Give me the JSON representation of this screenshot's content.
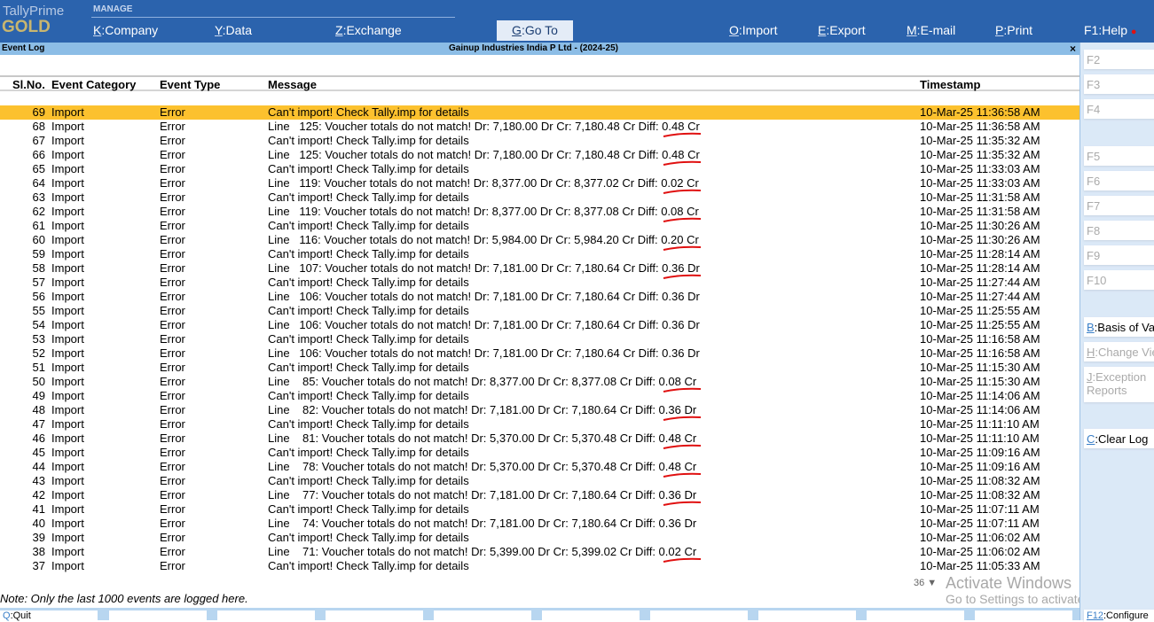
{
  "app": {
    "brand_line1": "TallyPrime",
    "brand_line2": "GOLD",
    "section": "MANAGE"
  },
  "menu": [
    {
      "key": "K",
      "label": "Company"
    },
    {
      "key": "Y",
      "label": "Data"
    },
    {
      "key": "Z",
      "label": "Exchange"
    },
    {
      "key": "G",
      "label": "Go To"
    },
    {
      "key": "O",
      "label": "Import"
    },
    {
      "key": "E",
      "label": "Export"
    },
    {
      "key": "M",
      "label": "E-mail"
    },
    {
      "key": "P",
      "label": "Print"
    },
    {
      "key": "F1",
      "label": "Help"
    }
  ],
  "report": {
    "title": "Event Log",
    "company": "Gainup Industries India P Ltd - (2024-25)",
    "close": "×"
  },
  "columns": [
    "Sl.No.",
    "Event Category",
    "Event Type",
    "Message",
    "Timestamp"
  ],
  "rows": [
    {
      "no": "69",
      "cat": "Import",
      "type": "Error",
      "msg": "Can't import! Check Tally.imp for details",
      "ts": "10-Mar-25 11:36:58 AM",
      "selected": true
    },
    {
      "no": "68",
      "cat": "Import",
      "type": "Error",
      "msg": "Line   125: Voucher totals do not match! Dr: 7,180.00 Dr Cr: 7,180.48 Cr Diff: 0.48 Cr",
      "ts": "10-Mar-25 11:36:58 AM",
      "marked": true
    },
    {
      "no": "67",
      "cat": "Import",
      "type": "Error",
      "msg": "Can't import! Check Tally.imp for details",
      "ts": "10-Mar-25 11:35:32 AM"
    },
    {
      "no": "66",
      "cat": "Import",
      "type": "Error",
      "msg": "Line   125: Voucher totals do not match! Dr: 7,180.00 Dr Cr: 7,180.48 Cr Diff: 0.48 Cr",
      "ts": "10-Mar-25 11:35:32 AM",
      "marked": true
    },
    {
      "no": "65",
      "cat": "Import",
      "type": "Error",
      "msg": "Can't import! Check Tally.imp for details",
      "ts": "10-Mar-25 11:33:03 AM"
    },
    {
      "no": "64",
      "cat": "Import",
      "type": "Error",
      "msg": "Line   119: Voucher totals do not match! Dr: 8,377.00 Dr Cr: 8,377.02 Cr Diff: 0.02 Cr",
      "ts": "10-Mar-25 11:33:03 AM",
      "marked": true
    },
    {
      "no": "63",
      "cat": "Import",
      "type": "Error",
      "msg": "Can't import! Check Tally.imp for details",
      "ts": "10-Mar-25 11:31:58 AM"
    },
    {
      "no": "62",
      "cat": "Import",
      "type": "Error",
      "msg": "Line   119: Voucher totals do not match! Dr: 8,377.00 Dr Cr: 8,377.08 Cr Diff: 0.08 Cr",
      "ts": "10-Mar-25 11:31:58 AM",
      "marked": true
    },
    {
      "no": "61",
      "cat": "Import",
      "type": "Error",
      "msg": "Can't import! Check Tally.imp for details",
      "ts": "10-Mar-25 11:30:26 AM"
    },
    {
      "no": "60",
      "cat": "Import",
      "type": "Error",
      "msg": "Line   116: Voucher totals do not match! Dr: 5,984.00 Dr Cr: 5,984.20 Cr Diff: 0.20 Cr",
      "ts": "10-Mar-25 11:30:26 AM",
      "marked": true
    },
    {
      "no": "59",
      "cat": "Import",
      "type": "Error",
      "msg": "Can't import! Check Tally.imp for details",
      "ts": "10-Mar-25 11:28:14 AM"
    },
    {
      "no": "58",
      "cat": "Import",
      "type": "Error",
      "msg": "Line   107: Voucher totals do not match! Dr: 7,181.00 Dr Cr: 7,180.64 Cr Diff: 0.36 Dr",
      "ts": "10-Mar-25 11:28:14 AM",
      "marked": true
    },
    {
      "no": "57",
      "cat": "Import",
      "type": "Error",
      "msg": "Can't import! Check Tally.imp for details",
      "ts": "10-Mar-25 11:27:44 AM"
    },
    {
      "no": "56",
      "cat": "Import",
      "type": "Error",
      "msg": "Line   106: Voucher totals do not match! Dr: 7,181.00 Dr Cr: 7,180.64 Cr Diff: 0.36 Dr",
      "ts": "10-Mar-25 11:27:44 AM"
    },
    {
      "no": "55",
      "cat": "Import",
      "type": "Error",
      "msg": "Can't import! Check Tally.imp for details",
      "ts": "10-Mar-25 11:25:55 AM"
    },
    {
      "no": "54",
      "cat": "Import",
      "type": "Error",
      "msg": "Line   106: Voucher totals do not match! Dr: 7,181.00 Dr Cr: 7,180.64 Cr Diff: 0.36 Dr",
      "ts": "10-Mar-25 11:25:55 AM"
    },
    {
      "no": "53",
      "cat": "Import",
      "type": "Error",
      "msg": "Can't import! Check Tally.imp for details",
      "ts": "10-Mar-25 11:16:58 AM"
    },
    {
      "no": "52",
      "cat": "Import",
      "type": "Error",
      "msg": "Line   106: Voucher totals do not match! Dr: 7,181.00 Dr Cr: 7,180.64 Cr Diff: 0.36 Dr",
      "ts": "10-Mar-25 11:16:58 AM"
    },
    {
      "no": "51",
      "cat": "Import",
      "type": "Error",
      "msg": "Can't import! Check Tally.imp for details",
      "ts": "10-Mar-25 11:15:30 AM"
    },
    {
      "no": "50",
      "cat": "Import",
      "type": "Error",
      "msg": "Line    85: Voucher totals do not match! Dr: 8,377.00 Dr Cr: 8,377.08 Cr Diff: 0.08 Cr",
      "ts": "10-Mar-25 11:15:30 AM",
      "marked": true
    },
    {
      "no": "49",
      "cat": "Import",
      "type": "Error",
      "msg": "Can't import! Check Tally.imp for details",
      "ts": "10-Mar-25 11:14:06 AM"
    },
    {
      "no": "48",
      "cat": "Import",
      "type": "Error",
      "msg": "Line    82: Voucher totals do not match! Dr: 7,181.00 Dr Cr: 7,180.64 Cr Diff: 0.36 Dr",
      "ts": "10-Mar-25 11:14:06 AM",
      "marked": true
    },
    {
      "no": "47",
      "cat": "Import",
      "type": "Error",
      "msg": "Can't import! Check Tally.imp for details",
      "ts": "10-Mar-25 11:11:10 AM"
    },
    {
      "no": "46",
      "cat": "Import",
      "type": "Error",
      "msg": "Line    81: Voucher totals do not match! Dr: 5,370.00 Dr Cr: 5,370.48 Cr Diff: 0.48 Cr",
      "ts": "10-Mar-25 11:11:10 AM",
      "marked": true
    },
    {
      "no": "45",
      "cat": "Import",
      "type": "Error",
      "msg": "Can't import! Check Tally.imp for details",
      "ts": "10-Mar-25 11:09:16 AM"
    },
    {
      "no": "44",
      "cat": "Import",
      "type": "Error",
      "msg": "Line    78: Voucher totals do not match! Dr: 5,370.00 Dr Cr: 5,370.48 Cr Diff: 0.48 Cr",
      "ts": "10-Mar-25 11:09:16 AM",
      "marked": true
    },
    {
      "no": "43",
      "cat": "Import",
      "type": "Error",
      "msg": "Can't import! Check Tally.imp for details",
      "ts": "10-Mar-25 11:08:32 AM"
    },
    {
      "no": "42",
      "cat": "Import",
      "type": "Error",
      "msg": "Line    77: Voucher totals do not match! Dr: 7,181.00 Dr Cr: 7,180.64 Cr Diff: 0.36 Dr",
      "ts": "10-Mar-25 11:08:32 AM",
      "marked": true
    },
    {
      "no": "41",
      "cat": "Import",
      "type": "Error",
      "msg": "Can't import! Check Tally.imp for details",
      "ts": "10-Mar-25 11:07:11 AM"
    },
    {
      "no": "40",
      "cat": "Import",
      "type": "Error",
      "msg": "Line    74: Voucher totals do not match! Dr: 7,181.00 Dr Cr: 7,180.64 Cr Diff: 0.36 Dr",
      "ts": "10-Mar-25 11:07:11 AM"
    },
    {
      "no": "39",
      "cat": "Import",
      "type": "Error",
      "msg": "Can't import! Check Tally.imp for details",
      "ts": "10-Mar-25 11:06:02 AM"
    },
    {
      "no": "38",
      "cat": "Import",
      "type": "Error",
      "msg": "Line    71: Voucher totals do not match! Dr: 5,399.00 Dr Cr: 5,399.02 Cr Diff: 0.02 Cr",
      "ts": "10-Mar-25 11:06:02 AM",
      "marked": true
    },
    {
      "no": "37",
      "cat": "Import",
      "type": "Error",
      "msg": "Can't import! Check Tally.imp for details",
      "ts": "10-Mar-25 11:05:33 AM"
    }
  ],
  "note": "Note: Only the last 1000 events are logged here.",
  "remaining_count": "36 ▼",
  "watermark": {
    "line1": "Activate Windows",
    "line2": "Go to Settings to activate Windows."
  },
  "right_panel": [
    {
      "key": "F2",
      "label": ""
    },
    {
      "key": "F3",
      "label": ""
    },
    {
      "key": "F4",
      "label": ""
    },
    {
      "key": "F5",
      "label": ""
    },
    {
      "key": "F6",
      "label": ""
    },
    {
      "key": "F7",
      "label": ""
    },
    {
      "key": "F8",
      "label": ""
    },
    {
      "key": "F9",
      "label": ""
    },
    {
      "key": "F10",
      "label": ""
    },
    {
      "key": "B",
      "label": "Basis of Values"
    },
    {
      "key": "H",
      "label": "Change View"
    },
    {
      "key": "J",
      "label": "Exception Reports"
    },
    {
      "key": "C",
      "label": "Clear Log"
    }
  ],
  "bottom": {
    "quit_key": "Q",
    "quit_label": "Quit",
    "config_key": "F12",
    "config_label": "Configure"
  },
  "colors": {
    "topbar": "#2b63ad",
    "subbar": "#8cbde6",
    "selected_row": "#fcc12e",
    "annotation": "#e01010"
  }
}
